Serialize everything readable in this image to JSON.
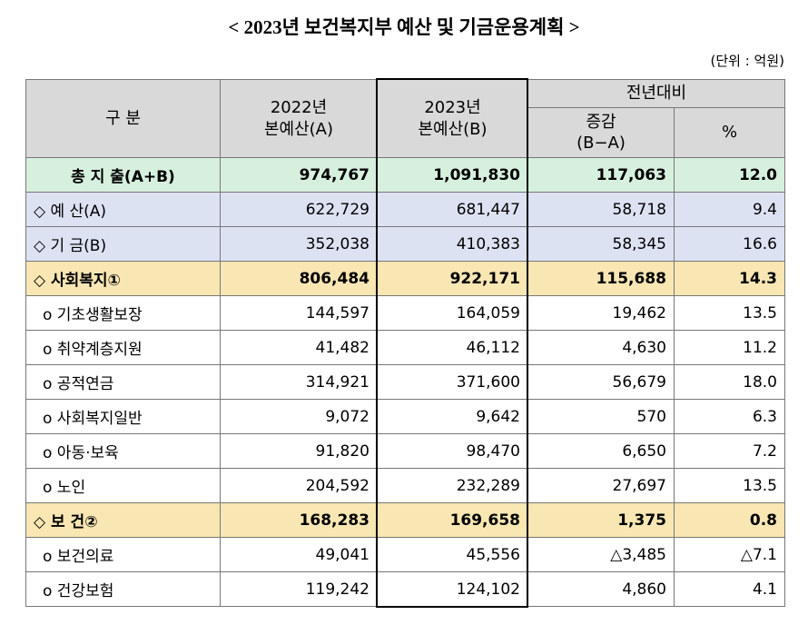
{
  "title": "< 2023년 보건복지부 예산 및 기금운용계획 >",
  "unit": "(단위 : 억원)",
  "header": {
    "category": "구 분",
    "col2022": [
      "2022년",
      "본예산(A)"
    ],
    "col2023": [
      "2023년",
      "본예산(B)"
    ],
    "compare": "전년대비",
    "diff": [
      "증감",
      "(B−A)"
    ],
    "pct": "%"
  },
  "table": {
    "rows": [
      [
        "총 지 출(A+B)",
        "974,767",
        "1,091,830",
        "117,063",
        "12.0"
      ],
      [
        "◇ 예 산(A)",
        "622,729",
        "681,447",
        "58,718",
        "9.4"
      ],
      [
        "◇ 기 금(B)",
        "352,038",
        "410,383",
        "58,345",
        "16.6"
      ],
      [
        "◇ 사회복지①",
        "806,484",
        "922,171",
        "115,688",
        "14.3"
      ],
      [
        "o 기초생활보장",
        "144,597",
        "164,059",
        "19,462",
        "13.5"
      ],
      [
        "o 취약계층지원",
        "41,482",
        "46,112",
        "4,630",
        "11.2"
      ],
      [
        "o 공적연금",
        "314,921",
        "371,600",
        "56,679",
        "18.0"
      ],
      [
        "o 사회복지일반",
        "9,072",
        "9,642",
        "570",
        "6.3"
      ],
      [
        "o 아동·보육",
        "91,820",
        "98,470",
        "6,650",
        "7.2"
      ],
      [
        "o 노인",
        "204,592",
        "232,289",
        "27,697",
        "13.5"
      ],
      [
        "◇ 보 건②",
        "168,283",
        "169,658",
        "1,375",
        "0.8"
      ],
      [
        "o 보건의료",
        "49,041",
        "45,556",
        "△3,485",
        "△7.1"
      ],
      [
        "o 건강보험",
        "119,242",
        "124,102",
        "4,860",
        "4.1"
      ]
    ]
  }
}
